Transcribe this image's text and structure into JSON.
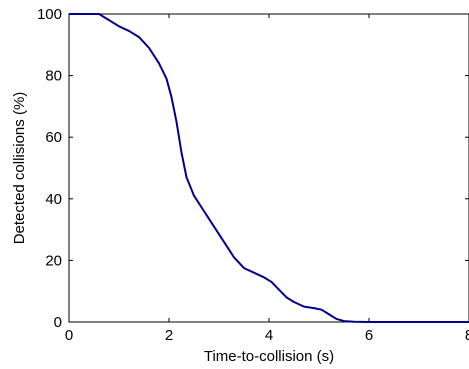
{
  "chart_data": {
    "type": "line",
    "title": "",
    "xlabel": "Time-to-collision (s)",
    "ylabel": "Detected collisions (%)",
    "xlim": [
      0,
      8
    ],
    "ylim": [
      0,
      100
    ],
    "xticks": [
      0,
      2,
      4,
      6,
      8
    ],
    "yticks": [
      0,
      20,
      40,
      60,
      80,
      100
    ],
    "xtick_labels": [
      "0",
      "2",
      "4",
      "6",
      "8"
    ],
    "ytick_labels": [
      "0",
      "20",
      "40",
      "60",
      "80",
      "100"
    ],
    "grid": false,
    "line_color": "#00008B",
    "series": [
      {
        "x": [
          0,
          0.6,
          0.8,
          1.0,
          1.2,
          1.4,
          1.6,
          1.8,
          1.95,
          2.05,
          2.15,
          2.25,
          2.35,
          2.5,
          2.7,
          2.9,
          3.1,
          3.3,
          3.5,
          3.7,
          3.9,
          4.05,
          4.2,
          4.35,
          4.5,
          4.7,
          4.9,
          5.05,
          5.15,
          5.25,
          5.35,
          5.5,
          5.7,
          6.0,
          7.0,
          8.0
        ],
        "y": [
          100,
          100,
          98,
          96,
          94.5,
          92.5,
          89,
          84,
          79,
          73,
          65,
          55,
          47,
          41,
          36,
          31,
          26,
          21,
          17.5,
          16,
          14.5,
          13,
          10.5,
          8,
          6.5,
          5,
          4.5,
          4,
          3,
          2,
          1,
          0.3,
          0.1,
          0,
          0,
          0
        ]
      }
    ]
  }
}
